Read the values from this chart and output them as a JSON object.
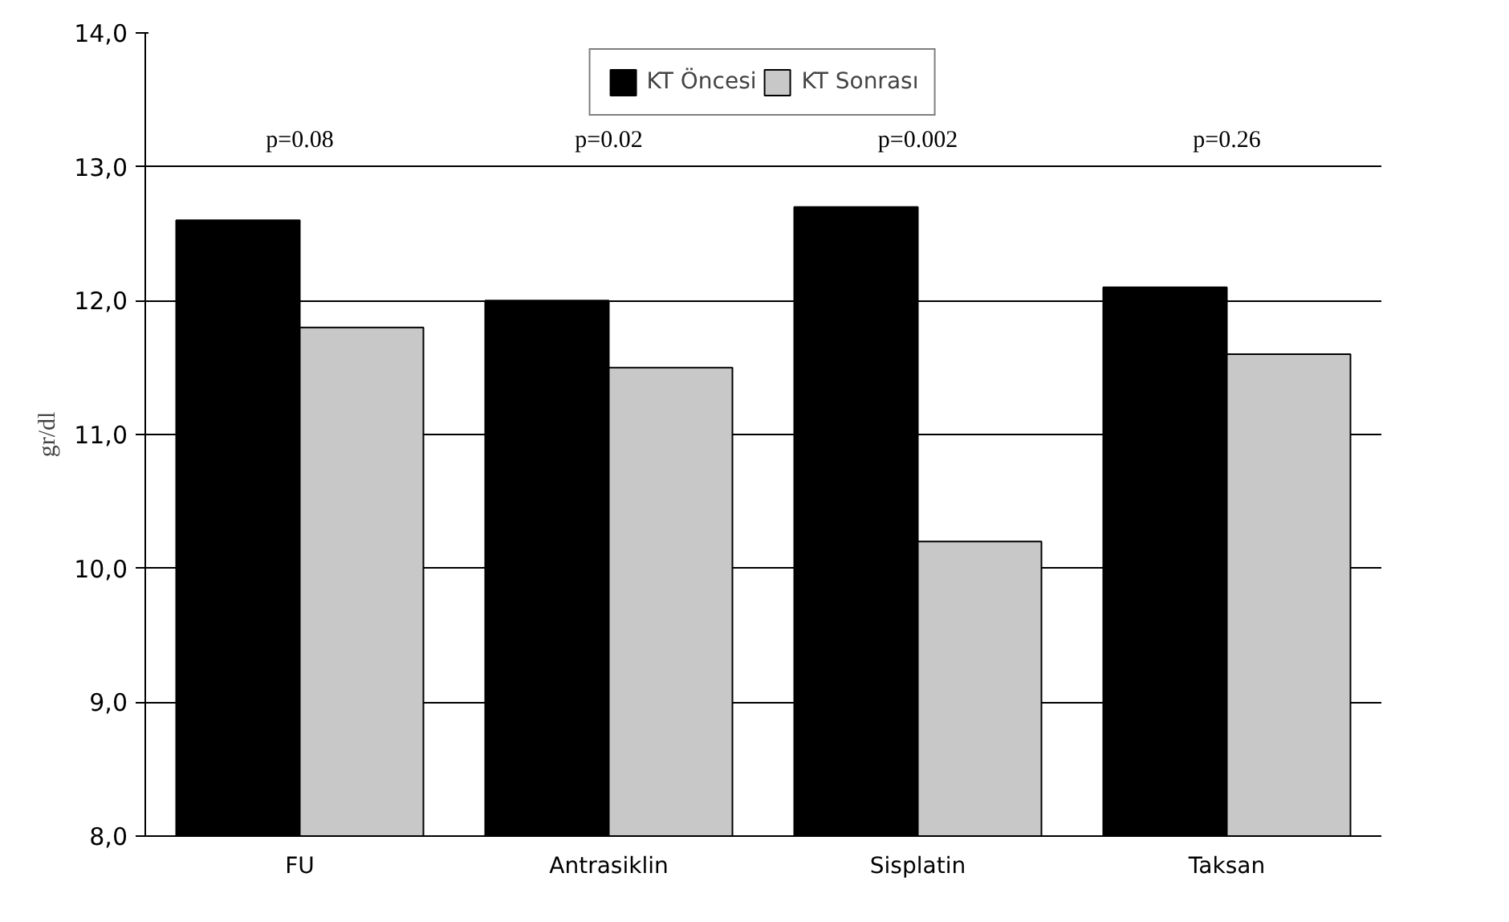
{
  "chart_data": {
    "type": "bar",
    "ylabel": "gr/dl",
    "categories": [
      "FU",
      "Antrasiklin",
      "Sisplatin",
      "Taksan"
    ],
    "series": [
      {
        "name": "KT Öncesi",
        "color": "#000000",
        "values": [
          12.6,
          12.0,
          12.7,
          12.1
        ]
      },
      {
        "name": "KT Sonrası",
        "color": "#c8c8c8",
        "values": [
          11.8,
          11.5,
          10.2,
          11.6
        ]
      }
    ],
    "ylim": [
      8,
      14
    ],
    "yticks": [
      {
        "value": 8,
        "label": "8,0"
      },
      {
        "value": 9,
        "label": "9,0"
      },
      {
        "value": 10,
        "label": "10,0"
      },
      {
        "value": 11,
        "label": "11,0"
      },
      {
        "value": 12,
        "label": "12,0"
      },
      {
        "value": 13,
        "label": "13,0"
      },
      {
        "value": 14,
        "label": "14,0"
      }
    ],
    "grid": "y",
    "legend": "top",
    "annotations": [
      "p=0.08",
      "p=0.02",
      "p=0.002",
      "p=0.26"
    ]
  }
}
